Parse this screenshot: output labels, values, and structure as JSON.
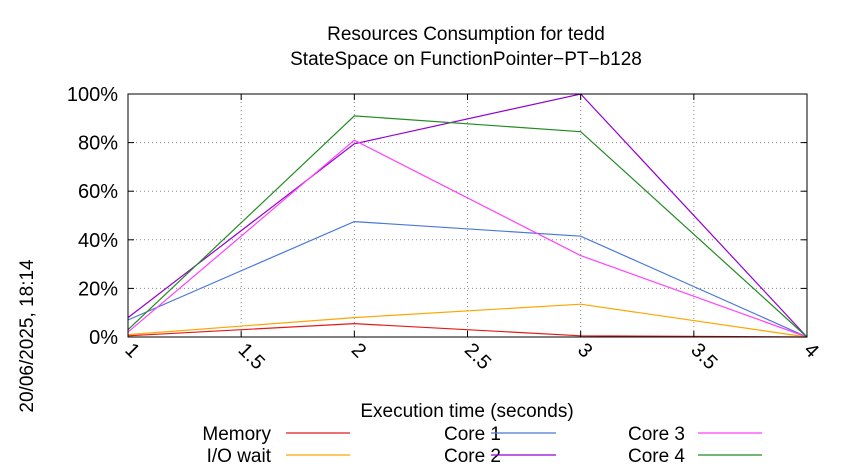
{
  "chart_data": {
    "type": "line",
    "title": "Resources Consumption for tedd",
    "subtitle": "StateSpace on FunctionPointer−PT−b128",
    "xlabel": "Execution time (seconds)",
    "ylabel": "",
    "timestamp": "20/06/2025, 18:14",
    "xlim": [
      1,
      4
    ],
    "ylim": [
      0,
      100
    ],
    "x_ticks": [
      "1",
      "1.5",
      "2",
      "2.5",
      "3",
      "3.5",
      "4"
    ],
    "y_ticks": [
      "0%",
      "20%",
      "40%",
      "60%",
      "80%",
      "100%"
    ],
    "grid": true,
    "legend_position": "bottom",
    "x": [
      1,
      2,
      3,
      4
    ],
    "series": [
      {
        "name": "Memory",
        "color": "#e41a1c",
        "values": [
          0.5,
          5.5,
          0.5,
          0
        ]
      },
      {
        "name": "I/O wait",
        "color": "#ffa500",
        "values": [
          1,
          8,
          13.5,
          0
        ]
      },
      {
        "name": "Core 1",
        "color": "#4a78d8",
        "values": [
          7,
          47.5,
          41.5,
          0
        ]
      },
      {
        "name": "Core 2",
        "color": "#9400d3",
        "values": [
          8,
          79.5,
          100,
          0
        ]
      },
      {
        "name": "Core 3",
        "color": "#ff40ff",
        "values": [
          2,
          81,
          33.5,
          0
        ]
      },
      {
        "name": "Core 4",
        "color": "#228b22",
        "values": [
          3,
          91,
          84.5,
          0
        ]
      }
    ]
  }
}
